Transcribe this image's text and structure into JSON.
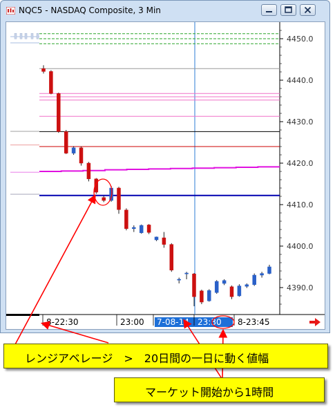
{
  "window": {
    "title": "NQC5 - NASDAQ Composite, 3 Min",
    "minimize_label": "minimize",
    "maximize_label": "maximize",
    "close_label": "close"
  },
  "chart_data": {
    "type": "candlestick",
    "title": "",
    "ylim": [
      4385.5,
      4452.2
    ],
    "y_ticks": [
      "4450.0",
      "4440.0",
      "4430.0",
      "4420.0",
      "4410.0",
      "4400.0",
      "4390.0"
    ],
    "y_tick_values": [
      4450,
      4440,
      4430,
      4420,
      4410,
      4400,
      4390
    ],
    "x_tick_labels": [
      "8-22:30",
      "23:00",
      "7-08-14",
      "23:30",
      "8-23:45"
    ],
    "highlighted_x_label": "7-08-14",
    "candles": [
      {
        "o": 4442.8,
        "h": 4443.6,
        "l": 4441.6,
        "c": 4442.1
      },
      {
        "o": 4442.1,
        "h": 4442.4,
        "l": 4436.6,
        "c": 4436.8
      },
      {
        "o": 4436.8,
        "h": 4437.0,
        "l": 4427.3,
        "c": 4427.6
      },
      {
        "o": 4427.6,
        "h": 4428.0,
        "l": 4422.2,
        "c": 4422.4
      },
      {
        "o": 4422.4,
        "h": 4424.1,
        "l": 4422.0,
        "c": 4423.7
      },
      {
        "o": 4423.7,
        "h": 4424.0,
        "l": 4419.4,
        "c": 4420.0
      },
      {
        "o": 4420.0,
        "h": 4420.3,
        "l": 4415.6,
        "c": 4416.2
      },
      {
        "o": 4416.2,
        "h": 4416.4,
        "l": 4412.6,
        "c": 4413.0
      },
      {
        "o": 4411.7,
        "h": 4412.1,
        "l": 4410.6,
        "c": 4411.0
      },
      {
        "o": 4411.0,
        "h": 4414.5,
        "l": 4410.7,
        "c": 4414.0
      },
      {
        "o": 4414.0,
        "h": 4414.3,
        "l": 4407.8,
        "c": 4408.8
      },
      {
        "o": 4408.7,
        "h": 4409.1,
        "l": 4403.8,
        "c": 4404.2
      },
      {
        "o": 4404.2,
        "h": 4405.0,
        "l": 4403.4,
        "c": 4404.5
      },
      {
        "o": 4403.2,
        "h": 4405.2,
        "l": 4403.0,
        "c": 4405.0
      },
      {
        "o": 4405.1,
        "h": 4405.3,
        "l": 4402.9,
        "c": 4403.3
      },
      {
        "o": 4401.5,
        "h": 4402.3,
        "l": 4401.2,
        "c": 4402.2
      },
      {
        "o": 4402.0,
        "h": 4403.4,
        "l": 4399.6,
        "c": 4400.4
      },
      {
        "o": 4400.4,
        "h": 4400.7,
        "l": 4393.8,
        "c": 4394.2
      },
      {
        "o": 4392.0,
        "h": 4392.4,
        "l": 4391.0,
        "c": 4392.0
      },
      {
        "o": 4393.5,
        "h": 4393.8,
        "l": 4392.0,
        "c": 4393.5
      },
      {
        "o": 4393.3,
        "h": 4393.5,
        "l": 4385.5,
        "c": 4387.8
      },
      {
        "o": 4389.2,
        "h": 4389.5,
        "l": 4386.0,
        "c": 4386.5
      },
      {
        "o": 4386.8,
        "h": 4389.6,
        "l": 4386.6,
        "c": 4389.3
      },
      {
        "o": 4388.8,
        "h": 4391.8,
        "l": 4388.5,
        "c": 4391.5
      },
      {
        "o": 4391.0,
        "h": 4392.0,
        "l": 4390.6,
        "c": 4391.7
      },
      {
        "o": 4390.2,
        "h": 4390.5,
        "l": 4387.2,
        "c": 4387.8
      },
      {
        "o": 4388.0,
        "h": 4390.8,
        "l": 4387.8,
        "c": 4390.4
      },
      {
        "o": 4390.3,
        "h": 4391.0,
        "l": 4389.9,
        "c": 4390.7
      },
      {
        "o": 4390.7,
        "h": 4393.4,
        "l": 4390.4,
        "c": 4393.0
      },
      {
        "o": 4393.0,
        "h": 4393.8,
        "l": 4392.4,
        "c": 4393.4
      },
      {
        "o": 4393.4,
        "h": 4395.5,
        "l": 4393.2,
        "c": 4395.0
      }
    ],
    "pre_market_lines": [
      {
        "y": 4450.5,
        "color": "#b9c9e8"
      },
      {
        "y": 4449.0,
        "color": "#b9c9e8"
      },
      {
        "y": 4427.7,
        "color": "#c0c0c0"
      },
      {
        "y": 4424.4,
        "color": "#f0b0b0"
      },
      {
        "y": 4412.5,
        "color": "#b8b8c8"
      }
    ],
    "levels": [
      {
        "y": 4451.2,
        "color": "#2aa52a",
        "style": "dashed"
      },
      {
        "y": 4450.0,
        "color": "#2aa52a",
        "style": "dashed"
      },
      {
        "y": 4448.8,
        "color": "#2aa52a",
        "style": "dashed"
      },
      {
        "y": 4442.8,
        "color": "#9a9a9a",
        "style": "solid"
      },
      {
        "y": 4436.8,
        "color": "#f070c8",
        "style": "solid"
      },
      {
        "y": 4436.0,
        "color": "#f070c8",
        "style": "solid"
      },
      {
        "y": 4435.2,
        "color": "#f070c8",
        "style": "solid"
      },
      {
        "y": 4431.3,
        "color": "#f070c8",
        "style": "solid"
      },
      {
        "y": 4427.6,
        "color": "#000000",
        "style": "solid"
      },
      {
        "y": 4424.0,
        "color": "#cc0000",
        "style": "solid"
      }
    ],
    "moving_average_magenta": [
      4418.0,
      4418.1,
      4418.2,
      4418.4,
      4418.5,
      4418.6,
      4418.7,
      4418.8,
      4418.9,
      4419.0,
      4419.1
    ],
    "range_average_blue": 4412.2,
    "up_color": "#2a60c8",
    "down_color": "#cc1010"
  },
  "callouts": {
    "range": {
      "text": "レンジアベレージ　>　20日間の一日に動く値幅"
    },
    "market": {
      "text": "マーケット開始から1時間"
    }
  }
}
